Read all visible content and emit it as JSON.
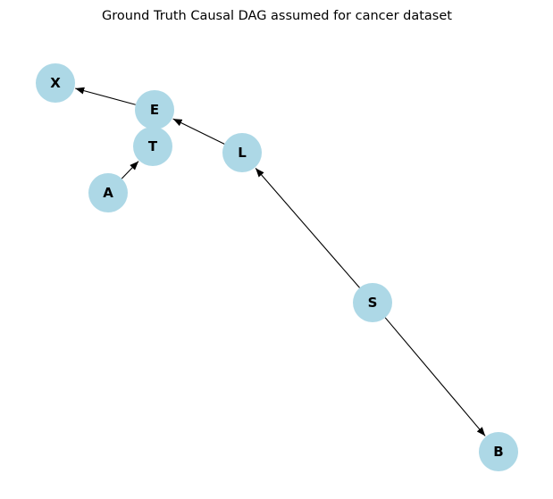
{
  "title": "Ground Truth Causal DAG assumed for cancer dataset",
  "node_color": "#add8e6",
  "edge_color": "#000000",
  "nodes": [
    {
      "id": "X",
      "label": "X"
    },
    {
      "id": "E",
      "label": "E"
    },
    {
      "id": "T",
      "label": "T"
    },
    {
      "id": "L",
      "label": "L"
    },
    {
      "id": "A",
      "label": "A"
    },
    {
      "id": "S",
      "label": "S"
    },
    {
      "id": "B",
      "label": "B"
    }
  ],
  "edges": [
    {
      "from": "E",
      "to": "X"
    },
    {
      "from": "L",
      "to": "E"
    },
    {
      "from": "A",
      "to": "T"
    },
    {
      "from": "S",
      "to": "L"
    },
    {
      "from": "S",
      "to": "B"
    }
  ]
}
